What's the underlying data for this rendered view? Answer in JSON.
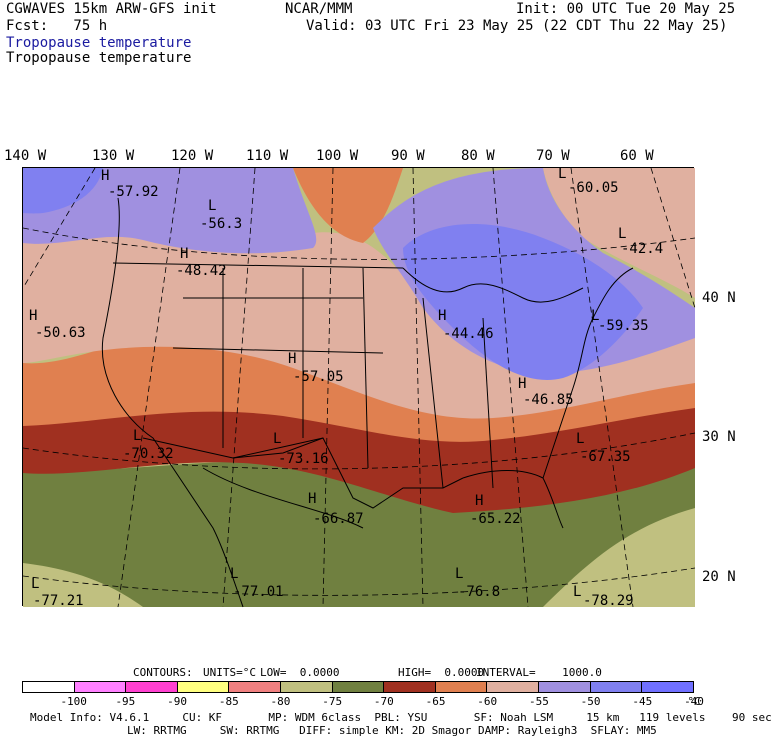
{
  "header": {
    "line1_left": "CGWAVES 15km ARW-GFS init",
    "line1_mid": "NCAR/MMM",
    "line1_right": "Init: 00 UTC Tue 20 May 25",
    "line2_left": "Fcst:   75 h",
    "line2_right": "Valid: 03 UTC Fri 23 May 25 (22 CDT Thu 22 May 25)",
    "field_title_blue": "Tropopause temperature",
    "field_title_black": "Tropopause temperature"
  },
  "axes": {
    "lon_labels": [
      "140 W",
      "130 W",
      "120 W",
      "110 W",
      "100 W",
      "90 W",
      "80 W",
      "70 W",
      "60 W"
    ],
    "lat_labels": [
      "40 N",
      "30 N",
      "20 N"
    ]
  },
  "map_labels": [
    {
      "type": "H",
      "value": "-57.92"
    },
    {
      "type": "L",
      "value": "-56.3"
    },
    {
      "type": "L",
      "value": "-60.05"
    },
    {
      "type": "H",
      "value": "-48.42"
    },
    {
      "type": "H",
      "value": "-50.63"
    },
    {
      "type": "H",
      "value": "-44.46"
    },
    {
      "type": "L",
      "value": "-59.35"
    },
    {
      "type": "H",
      "value": "-57.05"
    },
    {
      "type": "H",
      "value": "-46.85"
    },
    {
      "type": "L",
      "value": "-70.32"
    },
    {
      "type": "L",
      "value": "-73.16"
    },
    {
      "type": "L",
      "value": "-67.35"
    },
    {
      "type": "H",
      "value": "-66.87"
    },
    {
      "type": "H",
      "value": "-65.22"
    },
    {
      "type": "L",
      "value": "-77.01"
    },
    {
      "type": "L",
      "value": "-76.8"
    },
    {
      "type": "L",
      "value": "-77.21"
    },
    {
      "type": "L",
      "value": "-78.29"
    },
    {
      "type": "L",
      "value": "-42.4"
    }
  ],
  "contour_info": {
    "contours": "CONTOURS:",
    "units": "UNITS=°C",
    "low": "LOW=  0.0000",
    "high": "HIGH=  0.0000",
    "interval": "INTERVAL=    1000.0"
  },
  "colorbar": {
    "colors": [
      "#ffffff",
      "#ff80ff",
      "#ff40d0",
      "#ffff80",
      "#f08080",
      "#c0c080",
      "#708040",
      "#a03020",
      "#e08050",
      "#e0b0a0",
      "#a090e0",
      "#8080f0",
      "#7070ff"
    ],
    "ticks": [
      "-100",
      "-95",
      "-90",
      "-85",
      "-80",
      "-75",
      "-70",
      "-65",
      "-60",
      "-55",
      "-50",
      "-45",
      "-40",
      "°C"
    ]
  },
  "footer": {
    "line1": "Model Info: V4.6.1     CU: KF       MP: WDM 6class  PBL: YSU       SF: Noah LSM     15 km   119 levels    90 sec",
    "line2": "LW: RRTMG     SW: RRTMG   DIFF: simple KM: 2D Smagor DAMP: Rayleigh3  SFLAY: MM5"
  }
}
